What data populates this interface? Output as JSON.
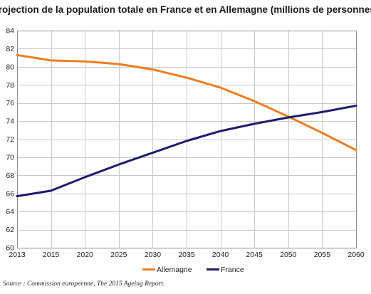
{
  "chart_data": {
    "type": "line",
    "title": "Projection de la population totale en France et en Allemagne (millions de personnes)",
    "x": [
      2013,
      2015,
      2020,
      2025,
      2030,
      2035,
      2040,
      2045,
      2050,
      2055,
      2060
    ],
    "x_tick_labels": [
      "2013",
      "2015",
      "2020",
      "2025",
      "2030",
      "2035",
      "2040",
      "2045",
      "2050",
      "2055",
      "2060"
    ],
    "y_tick_labels": [
      "60",
      "62",
      "64",
      "66",
      "68",
      "70",
      "72",
      "74",
      "76",
      "78",
      "80",
      "82",
      "84"
    ],
    "ylim": [
      60,
      84
    ],
    "grid": true,
    "legend_position": "bottom-center",
    "series": [
      {
        "name": "Allemagne",
        "color": "#ef7d22",
        "values": [
          81.3,
          80.7,
          80.6,
          80.3,
          79.7,
          78.8,
          77.7,
          76.2,
          74.5,
          72.7,
          70.8
        ]
      },
      {
        "name": "France",
        "color": "#1c1c6e",
        "values": [
          65.7,
          66.3,
          67.8,
          69.2,
          70.5,
          71.8,
          72.9,
          73.7,
          74.4,
          75.0,
          75.7
        ]
      }
    ],
    "source": "Source : Commission européenne, The 2015 Ageing Report."
  }
}
